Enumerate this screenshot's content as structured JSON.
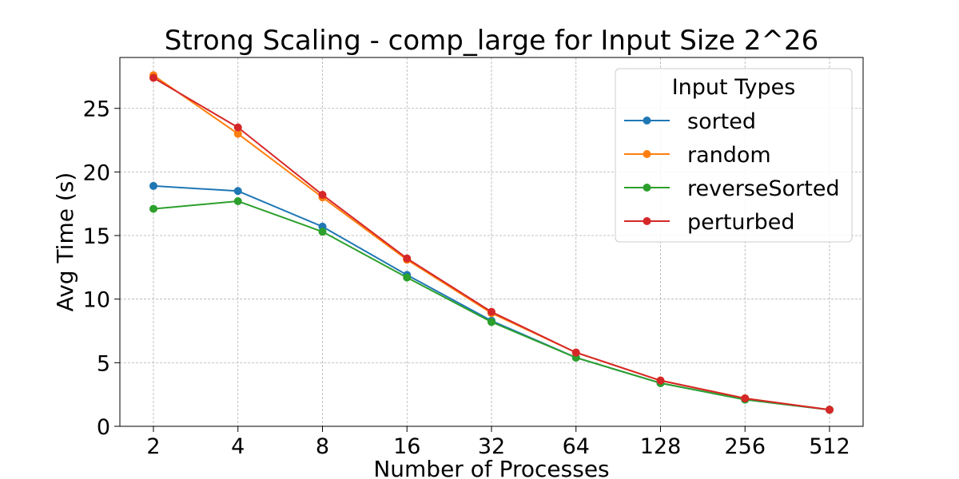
{
  "chart_data": {
    "type": "line",
    "title": "Strong Scaling - comp_large for Input Size 2^26",
    "xlabel": "Number of Processes",
    "ylabel": "Avg Time (s)",
    "categories": [
      "2",
      "4",
      "8",
      "16",
      "32",
      "64",
      "128",
      "256",
      "512"
    ],
    "ylim": [
      0,
      29
    ],
    "yticks": [
      0,
      5,
      10,
      15,
      20,
      25
    ],
    "grid": true,
    "legend": {
      "title": "Input Types",
      "position": "upper right"
    },
    "series": [
      {
        "name": "sorted",
        "color": "#1f77b4",
        "values": [
          18.9,
          18.5,
          15.7,
          11.9,
          8.3,
          5.4,
          3.4,
          2.1,
          1.3
        ]
      },
      {
        "name": "random",
        "color": "#ff7f0e",
        "values": [
          27.6,
          23.0,
          18.0,
          13.1,
          8.9,
          5.8,
          3.6,
          2.2,
          1.3
        ]
      },
      {
        "name": "reverseSorted",
        "color": "#2ca02c",
        "values": [
          17.1,
          17.7,
          15.3,
          11.7,
          8.2,
          5.4,
          3.4,
          2.1,
          1.3
        ]
      },
      {
        "name": "perturbed",
        "color": "#d62728",
        "values": [
          27.4,
          23.5,
          18.2,
          13.2,
          9.0,
          5.8,
          3.6,
          2.2,
          1.3
        ]
      }
    ]
  }
}
